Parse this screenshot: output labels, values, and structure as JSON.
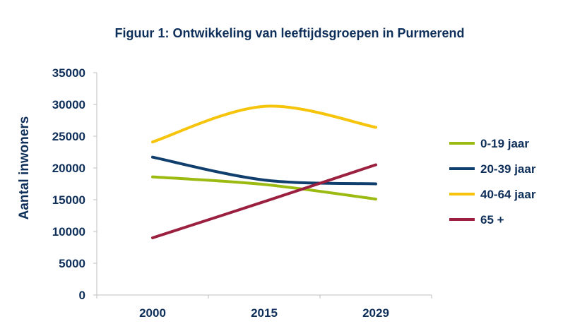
{
  "chart_data": {
    "type": "line",
    "title": "Figuur 1: Ontwikkeling van leeftijdsgroepen in Purmerend",
    "xlabel": "",
    "ylabel": "Aantal inwoners",
    "categories": [
      "2000",
      "2015",
      "2029"
    ],
    "ylim": [
      0,
      35000
    ],
    "yticks": [
      "0",
      "5000",
      "10000",
      "15000",
      "20000",
      "25000",
      "30000",
      "35000"
    ],
    "grid": false,
    "legend_position": "right",
    "smooth": true,
    "series": [
      {
        "name": "0-19 jaar",
        "values": [
          18600,
          17400,
          15100
        ],
        "color": "#9bbb12"
      },
      {
        "name": "20-39 jaar",
        "values": [
          21700,
          18100,
          17500
        ],
        "color": "#103f6e"
      },
      {
        "name": "40-64 jaar",
        "values": [
          24100,
          29700,
          26400
        ],
        "color": "#f6c40a"
      },
      {
        "name": "65 +",
        "values": [
          9000,
          14700,
          20500
        ],
        "color": "#9b1f3f"
      }
    ]
  }
}
